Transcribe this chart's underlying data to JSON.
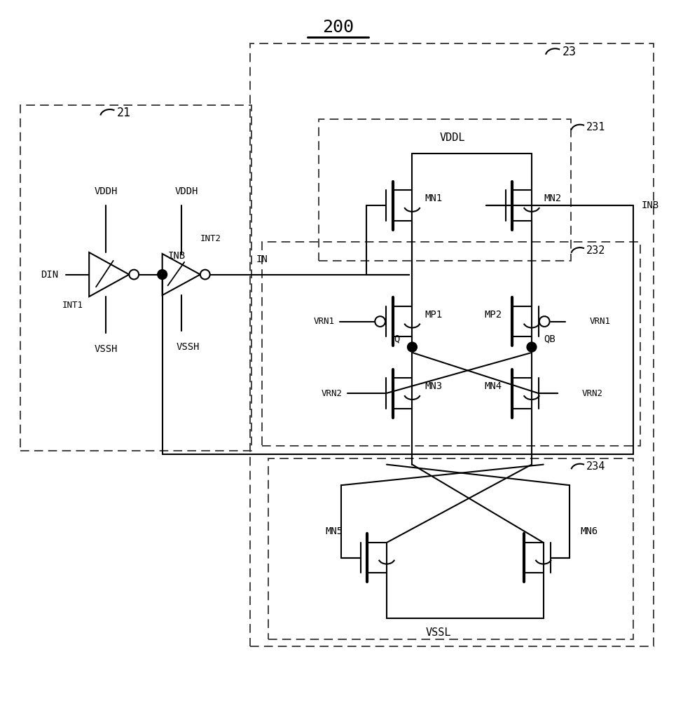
{
  "title": "200",
  "labels": {
    "box21": "21",
    "box23": "23",
    "box231": "231",
    "box232": "232",
    "box234": "234",
    "din": "DIN",
    "int1": "INT1",
    "int2": "INT2",
    "inb": "INB",
    "in": "IN",
    "vddh": "VDDH",
    "vssh": "VSSH",
    "vddl": "VDDL",
    "vssl": "VSSL",
    "vrn1": "VRN1",
    "vrn2": "VRN2",
    "mn1": "MN1",
    "mn2": "MN2",
    "mn3": "MN3",
    "mn4": "MN4",
    "mn5": "MN5",
    "mn6": "MN6",
    "mp1": "MP1",
    "mp2": "MP2",
    "q": "Q",
    "qb": "QB"
  }
}
